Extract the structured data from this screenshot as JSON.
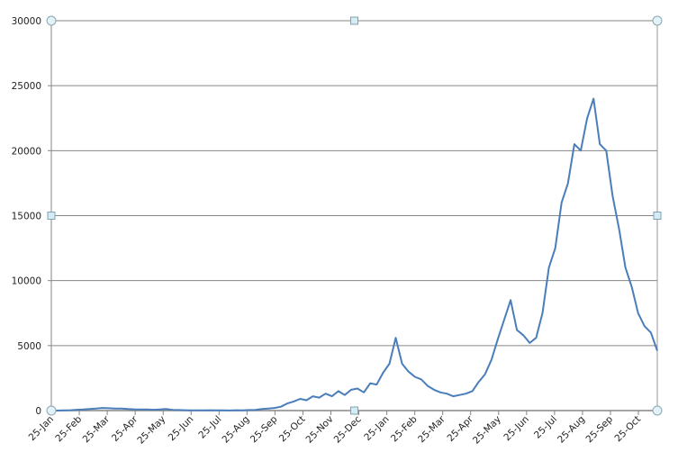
{
  "chart_data": {
    "type": "line",
    "title": "",
    "xlabel": "",
    "ylabel": "",
    "ylim": [
      0,
      30000
    ],
    "yticks": [
      "0",
      "5000",
      "10000",
      "15000",
      "20000",
      "25000",
      "30000"
    ],
    "ytick_values": [
      0,
      5000,
      10000,
      15000,
      20000,
      25000,
      30000
    ],
    "xticks": [
      "25-Jan",
      "25-Feb",
      "25-Mar",
      "25-Apr",
      "25-May",
      "25-Jun",
      "25-Jul",
      "25-Aug",
      "25-Sep",
      "25-Oct",
      "25-Nov",
      "25-Dec",
      "25-Jan",
      "25-Feb",
      "25-Mar",
      "25-Apr",
      "25-May",
      "25-Jun",
      "25-Jul",
      "25-Aug",
      "25-Sep",
      "25-Oct"
    ],
    "grid": true,
    "legend": "none",
    "series_color": "#4a7ebb",
    "x_start": "25-Jan",
    "sample_interval_days": 7,
    "values": [
      0,
      0,
      20,
      30,
      60,
      80,
      120,
      150,
      200,
      180,
      150,
      160,
      120,
      100,
      90,
      80,
      60,
      80,
      120,
      50,
      40,
      30,
      20,
      20,
      15,
      30,
      20,
      20,
      10,
      30,
      20,
      40,
      50,
      120,
      150,
      200,
      300,
      550,
      700,
      900,
      800,
      1100,
      1000,
      1300,
      1100,
      1500,
      1200,
      1600,
      1700,
      1400,
      2100,
      2000,
      2900,
      3600,
      5600,
      3600,
      3000,
      2600,
      2400,
      1900,
      1600,
      1400,
      1300,
      1100,
      1200,
      1300,
      1500,
      2200,
      2800,
      3900,
      5500,
      7000,
      8500,
      6200,
      5800,
      5200,
      5600,
      7500,
      11000,
      12500,
      16000,
      17500,
      20500,
      20000,
      22500,
      24000,
      20500,
      20000,
      16500,
      14000,
      11000,
      9500,
      7500,
      6500,
      6000,
      4600
    ]
  }
}
